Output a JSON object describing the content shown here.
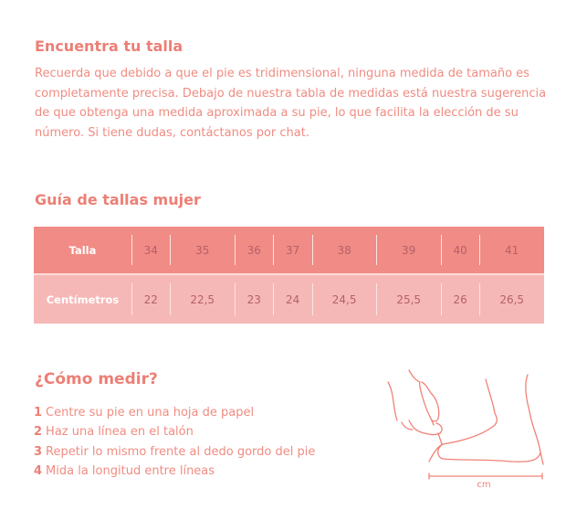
{
  "intro": {
    "title": "Encuentra tu talla",
    "text": "Recuerda que debido a que el pie es tridimensional, ninguna medida de tamaño es completamente precisa. Debajo de nuestra tabla de medidas está nuestra sugerencia de que obtenga una medida aproximada a su pie, lo que facilita la elección de su número. Si tiene dudas, contáctanos por chat."
  },
  "guide": {
    "title": "Guía de tallas mujer",
    "rows": [
      {
        "label": "Talla",
        "values": [
          "34",
          "35",
          "36",
          "37",
          "38",
          "39",
          "40",
          "41"
        ]
      },
      {
        "label": "Centímetros",
        "values": [
          "22",
          "22,5",
          "23",
          "24",
          "24,5",
          "25,5",
          "26",
          "26,5"
        ]
      }
    ]
  },
  "measure": {
    "title": "¿Cómo medir?",
    "steps": [
      {
        "num": "1",
        "text": "Centre su pie en una hoja de papel"
      },
      {
        "num": "2",
        "text": "Haz una línea en el talón"
      },
      {
        "num": "3",
        "text": "Repetir lo mismo frente al dedo gordo del pie"
      },
      {
        "num": "4",
        "text": "Mida la longitud entre líneas"
      }
    ],
    "illustration_label": "cm"
  },
  "colors": {
    "accent": "#ec7f75",
    "header_row": "#f18b85",
    "body_row": "#f6b8b6",
    "cell_text": "#b5606a"
  }
}
